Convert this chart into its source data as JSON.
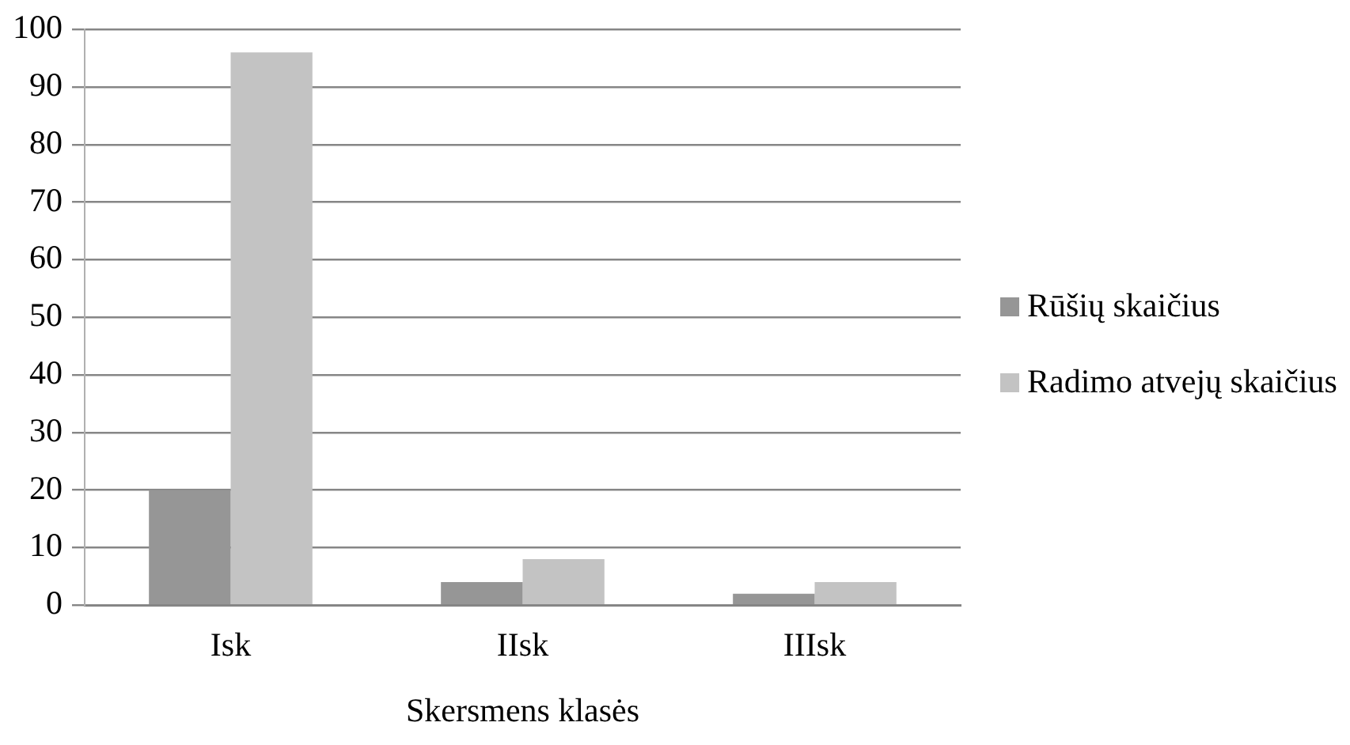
{
  "chart_data": {
    "type": "bar",
    "xlabel": "Skersmens klasės",
    "categories": [
      "Isk",
      "IIsk",
      "IIIsk"
    ],
    "series": [
      {
        "name": "Rūšių skaičius",
        "color": "#969696",
        "values": [
          20,
          4,
          2
        ]
      },
      {
        "name": "Radimo atvejų skaičius",
        "color": "#c3c3c3",
        "values": [
          96,
          8,
          4
        ]
      }
    ],
    "ylim": [
      0,
      100
    ],
    "yticks": [
      0,
      10,
      20,
      30,
      40,
      50,
      60,
      70,
      80,
      90,
      100
    ],
    "grid": "y",
    "legend": "right"
  }
}
